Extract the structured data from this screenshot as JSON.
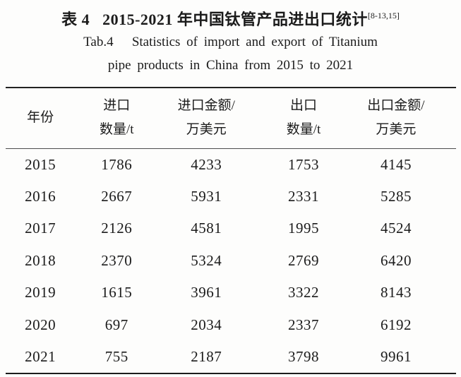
{
  "page": {
    "background": "#fdfdfc",
    "text_color": "#1b1b1b",
    "rule_color": "#222222"
  },
  "title": {
    "zh": "表 4   2015-2021 年中国钛管产品进出口统计",
    "citation": "[8-13,15]",
    "en_line1": "Tab.4   Statistics of import and export of Titanium",
    "en_line2": "pipe products in China from 2015 to 2021"
  },
  "table": {
    "headers": {
      "year": {
        "line1": "年份",
        "line2": ""
      },
      "import_qty": {
        "line1": "进口",
        "line2": "数量/t"
      },
      "import_value": {
        "line1": "进口金额/",
        "line2": "万美元"
      },
      "export_qty": {
        "line1": "出口",
        "line2": "数量/t"
      },
      "export_value": {
        "line1": "出口金额/",
        "line2": "万美元"
      }
    },
    "rows": [
      {
        "year": "2015",
        "import_qty": "1786",
        "import_value": "4233",
        "export_qty": "1753",
        "export_value": "4145"
      },
      {
        "year": "2016",
        "import_qty": "2667",
        "import_value": "5931",
        "export_qty": "2331",
        "export_value": "5285"
      },
      {
        "year": "2017",
        "import_qty": "2126",
        "import_value": "4581",
        "export_qty": "1995",
        "export_value": "4524"
      },
      {
        "year": "2018",
        "import_qty": "2370",
        "import_value": "5324",
        "export_qty": "2769",
        "export_value": "6420"
      },
      {
        "year": "2019",
        "import_qty": "1615",
        "import_value": "3961",
        "export_qty": "3322",
        "export_value": "8143"
      },
      {
        "year": "2020",
        "import_qty": "697",
        "import_value": "2034",
        "export_qty": "2337",
        "export_value": "6192"
      },
      {
        "year": "2021",
        "import_qty": "755",
        "import_value": "2187",
        "export_qty": "3798",
        "export_value": "9961"
      }
    ]
  },
  "chart_data": {
    "type": "table",
    "title": "表4 2015-2021年中国钛管产品进出口统计 / Tab.4 Statistics of import and export of Titanium pipe products in China from 2015 to 2021",
    "citation": "[8-13,15]",
    "columns": [
      "年份",
      "进口数量/t",
      "进口金额/万美元",
      "出口数量/t",
      "出口金额/万美元"
    ],
    "rows": [
      [
        2015,
        1786,
        4233,
        1753,
        4145
      ],
      [
        2016,
        2667,
        5931,
        2331,
        5285
      ],
      [
        2017,
        2126,
        4581,
        1995,
        4524
      ],
      [
        2018,
        2370,
        5324,
        2769,
        6420
      ],
      [
        2019,
        1615,
        3961,
        3322,
        8143
      ],
      [
        2020,
        697,
        2034,
        2337,
        6192
      ],
      [
        2021,
        755,
        2187,
        3798,
        9961
      ]
    ]
  }
}
